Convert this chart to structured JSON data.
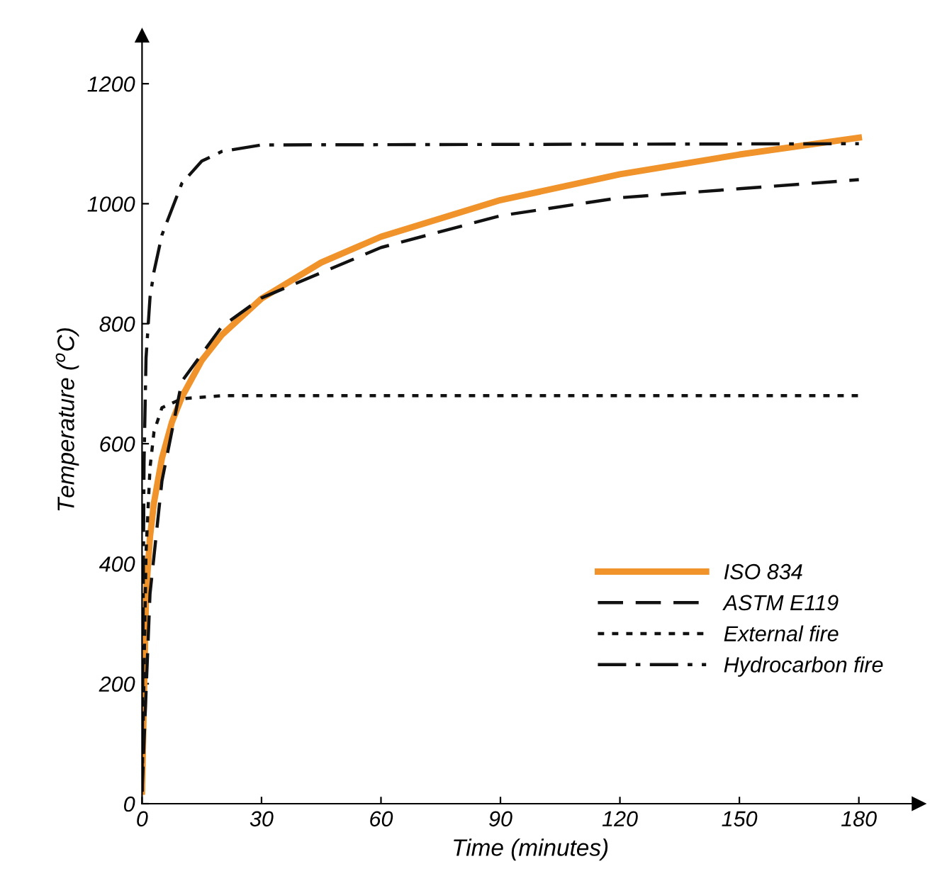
{
  "chart_data": {
    "type": "line",
    "xlabel": "Time (minutes)",
    "ylabel": "Temperature ($^{o}$C)",
    "xlim": [
      0,
      195
    ],
    "ylim": [
      0,
      1280
    ],
    "xticks": [
      0,
      30,
      60,
      90,
      120,
      150,
      180
    ],
    "yticks": [
      0,
      200,
      400,
      600,
      800,
      1000,
      1200
    ],
    "grid": false,
    "legend": "lower right",
    "series": [
      {
        "name": "ISO 834",
        "color": "#f0932b",
        "line_style": "solid",
        "x": [
          0,
          1,
          2,
          3,
          5,
          7.5,
          10,
          15,
          20,
          30,
          45,
          60,
          90,
          120,
          150,
          180
        ],
        "values": [
          20,
          349,
          445,
          502,
          576,
          636,
          678,
          739,
          781,
          842,
          902,
          945,
          1006,
          1049,
          1082,
          1110
        ]
      },
      {
        "name": "ASTM E119",
        "color": "#111111",
        "line_style": "dashed",
        "x": [
          0,
          2,
          5,
          10,
          20,
          30,
          60,
          90,
          120,
          150,
          180
        ],
        "values": [
          20,
          350,
          538,
          704,
          795,
          843,
          927,
          980,
          1010,
          1025,
          1040
        ]
      },
      {
        "name": "External fire",
        "color": "#111111",
        "line_style": "dotted",
        "x": [
          0,
          1,
          2,
          3,
          5,
          10,
          20,
          180
        ],
        "values": [
          20,
          420,
          560,
          620,
          660,
          675,
          680,
          680
        ]
      },
      {
        "name": "Hydrocarbon fire",
        "color": "#111111",
        "line_style": "dashdot",
        "x": [
          0,
          0.5,
          1,
          2,
          3,
          5,
          10,
          15,
          20,
          30,
          180
        ],
        "values": [
          20,
          568,
          743,
          844,
          887,
          948,
          1034,
          1071,
          1087,
          1098,
          1100
        ]
      }
    ]
  }
}
